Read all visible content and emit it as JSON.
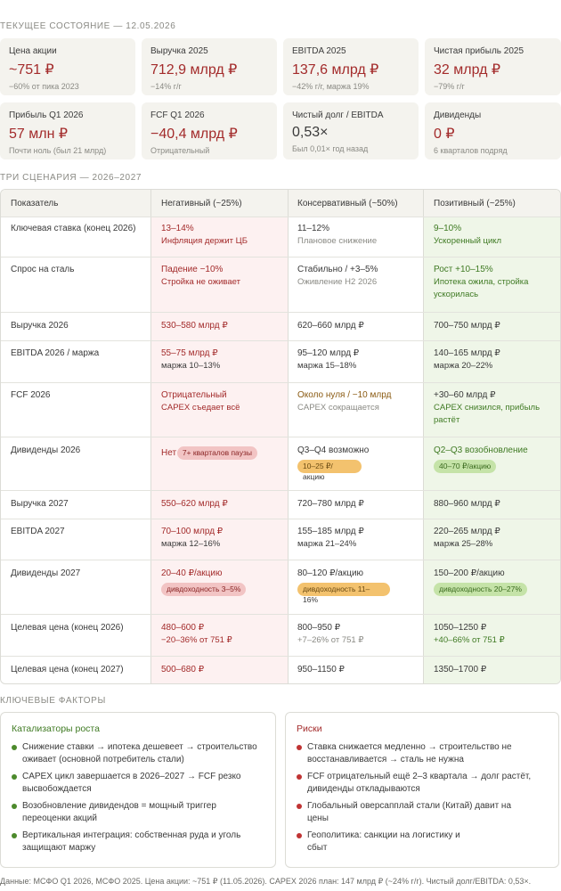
{
  "current": {
    "title": "ТЕКУЩЕЕ СОСТОЯНИЕ — 12.05.2026",
    "cards": [
      {
        "label": "Цена акции",
        "value": "~751 ₽",
        "sub": "−60% от пика 2023"
      },
      {
        "label": "Выручка 2025",
        "value": "712,9 млрд ₽",
        "sub": "−14% г/г"
      },
      {
        "label": "EBITDA 2025",
        "value": "137,6 млрд ₽",
        "sub": "−42% г/г, маржа 19%"
      },
      {
        "label": "Чистая прибыль 2025",
        "value": "32 млрд ₽",
        "sub": "−79% г/г"
      },
      {
        "label": "Прибыль Q1 2026",
        "value": "57 млн ₽",
        "sub": "Почти ноль (был 21 млрд)"
      },
      {
        "label": "FCF Q1 2026",
        "value": "−40,4 млрд ₽",
        "sub": "Отрицательный"
      },
      {
        "label": "Чистый долг / EBITDA",
        "value": "0,53×",
        "sub": "Был 0,01× год назад"
      },
      {
        "label": "Дивиденды",
        "value": "0 ₽",
        "sub": "6 кварталов подряд"
      }
    ]
  },
  "scenarios": {
    "title": "ТРИ СЦЕНАРИЯ — 2026–2027",
    "headers": [
      "Показатель",
      "Негативный (~25%)",
      "Консервативный (~50%)",
      "Позитивный (~25%)"
    ],
    "rows": [
      {
        "label": "Ключевая ставка (конец 2026)",
        "neg": [
          "13–14%",
          "Инфляция держит ЦБ"
        ],
        "con": [
          "11–12%",
          "Плановое снижение"
        ],
        "pos": [
          "9–10%",
          "Ускоренный цикл"
        ]
      },
      {
        "label": "Спрос на сталь",
        "neg": [
          "Падение −10%",
          "Стройка не оживает"
        ],
        "con": [
          "Стабильно / +3–5%",
          "Оживление H2 2026"
        ],
        "pos": [
          "Рост +10–15%",
          "Ипотека ожила, стройка",
          "ускорилась"
        ]
      },
      {
        "label": "Выручка 2026",
        "neg": [
          "530–580 млрд ₽"
        ],
        "con": [
          "620–660 млрд ₽"
        ],
        "pos": [
          "700–750 млрд ₽"
        ]
      },
      {
        "label": "EBITDA 2026 / маржа",
        "neg": [
          "55–75 млрд ₽",
          "маржа 10–13%"
        ],
        "con": [
          "95–120 млрд ₽",
          "маржа 15–18%"
        ],
        "pos": [
          "140–165 млрд ₽",
          "маржа 20–22%"
        ]
      },
      {
        "label": "FCF 2026",
        "neg": [
          "Отрицательный",
          "CAPEX съедает всё"
        ],
        "con": [
          "Около нуля / −10 млрд",
          "CAPEX сокращается"
        ],
        "pos": [
          "+30–60 млрд ₽",
          "CAPEX снизился, прибыль",
          "растёт"
        ]
      },
      {
        "label": "Дивиденды 2026",
        "neg": [
          "Нет",
          "7+ кварталов паузы"
        ],
        "con": [
          "Q3–Q4 возможно",
          "10–25 ₽/",
          "акцию"
        ],
        "pos": [
          "Q2–Q3 возобновление",
          "40–70 ₽/акцию"
        ]
      },
      {
        "label": "Выручка 2027",
        "neg": [
          "550–620 млрд ₽"
        ],
        "con": [
          "720–780 млрд ₽"
        ],
        "pos": [
          "880–960 млрд ₽"
        ]
      },
      {
        "label": "EBITDA 2027",
        "neg": [
          "70–100 млрд ₽",
          "маржа 12–16%"
        ],
        "con": [
          "155–185 млрд ₽",
          "маржа 21–24%"
        ],
        "pos": [
          "220–265 млрд ₽",
          "маржа 25–28%"
        ]
      },
      {
        "label": "Дивиденды 2027",
        "neg": [
          "20–40 ₽/акцию",
          "дивдоходность 3–5%"
        ],
        "con": [
          "80–120 ₽/акцию",
          "дивдоходность 11–",
          "16%"
        ],
        "pos": [
          "150–200 ₽/акцию",
          "дивдоходность 20–27%"
        ]
      },
      {
        "label": "Целевая цена (конец 2026)",
        "neg": [
          "480–600 ₽",
          "−20–36% от 751 ₽"
        ],
        "con": [
          "800–950 ₽",
          "+7–26% от 751 ₽"
        ],
        "pos": [
          "1050–1250 ₽",
          "+40–66% от 751 ₽"
        ]
      },
      {
        "label": "Целевая цена (конец 2027)",
        "neg": [
          "500–680 ₽"
        ],
        "con": [
          "950–1150 ₽"
        ],
        "pos": [
          "1350–1700 ₽"
        ]
      }
    ]
  },
  "factors": {
    "title": "КЛЮЧЕВЫЕ ФАКТОРЫ",
    "growth": {
      "title": "Катализаторы роста",
      "items": [
        [
          "Снижение ставки → ипотека дешевеет → строительство",
          "оживает (основной потребитель стали)"
        ],
        [
          "CAPEX цикл завершается в 2026–2027 → FCF резко",
          "высвобождается"
        ],
        [
          "Возобновление дивидендов = мощный триггер",
          "переоценки акций"
        ],
        [
          "Вертикальная интеграция: собственная руда и уголь",
          "защищают маржу"
        ]
      ]
    },
    "risks": {
      "title": "Риски",
      "items": [
        [
          "Ставка снижается медленно → строительство не",
          "восстанавливается → сталь не нужна"
        ],
        [
          "FCF отрицательный ещё 2–3 квартала → долг растёт,",
          "дивиденды откладываются"
        ],
        [
          "Глобальный оверсапплай стали (Китай) давит на",
          "цены"
        ],
        [
          "Геополитика: санкции на логистику и",
          "сбыт"
        ]
      ]
    }
  },
  "footer": "Данные: МСФО Q1 2026, МСФО 2025. Цена акции: ~751 ₽ (11.05.2026). CAPEX 2026 план: 147 млрд ₽ (~24% г/г). Чистый долг/EBITDA: 0,53×."
}
